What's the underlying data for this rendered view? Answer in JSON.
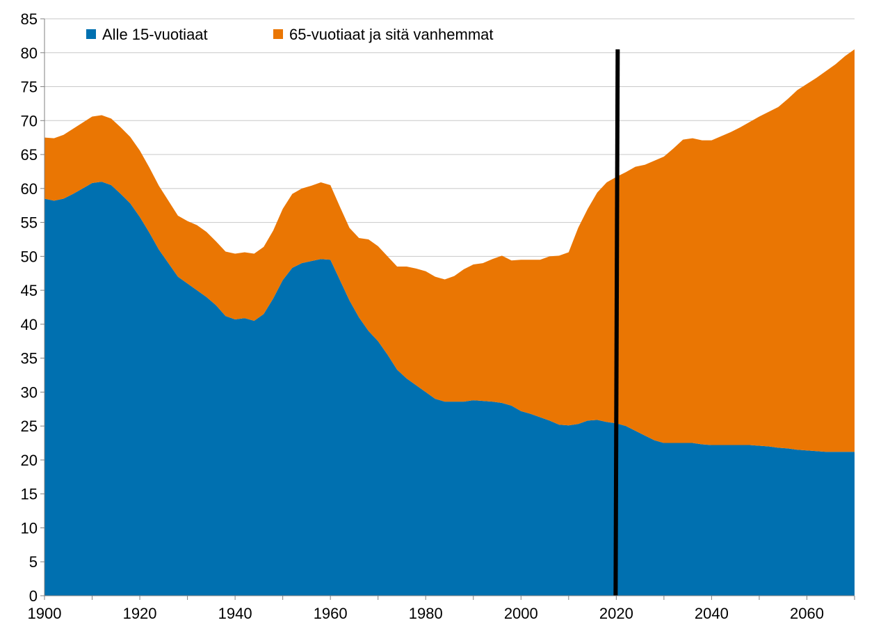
{
  "chart_data": {
    "type": "area",
    "stacked": true,
    "title": "",
    "xlabel": "",
    "ylabel": "",
    "xlim": [
      1900,
      2070
    ],
    "ylim": [
      0,
      85
    ],
    "x_ticks": [
      1900,
      1920,
      1940,
      1960,
      1980,
      2000,
      2020,
      2040,
      2060
    ],
    "y_ticks": [
      0,
      5,
      10,
      15,
      20,
      25,
      30,
      35,
      40,
      45,
      50,
      55,
      60,
      65,
      70,
      75,
      80,
      85
    ],
    "grid": {
      "horizontal": true,
      "vertical": false
    },
    "legend_position": "top-left",
    "marker_line": {
      "x": 2020,
      "color": "#000000"
    },
    "x": [
      1900,
      1902,
      1904,
      1906,
      1908,
      1910,
      1912,
      1914,
      1916,
      1918,
      1920,
      1922,
      1924,
      1926,
      1928,
      1930,
      1932,
      1934,
      1936,
      1938,
      1940,
      1942,
      1944,
      1946,
      1948,
      1950,
      1952,
      1954,
      1956,
      1958,
      1960,
      1962,
      1964,
      1966,
      1968,
      1970,
      1972,
      1974,
      1976,
      1978,
      1980,
      1982,
      1984,
      1986,
      1988,
      1990,
      1992,
      1994,
      1996,
      1998,
      2000,
      2002,
      2004,
      2006,
      2008,
      2010,
      2012,
      2014,
      2016,
      2018,
      2020,
      2022,
      2024,
      2026,
      2028,
      2030,
      2032,
      2034,
      2036,
      2038,
      2040,
      2042,
      2044,
      2046,
      2048,
      2050,
      2052,
      2054,
      2056,
      2058,
      2060,
      2062,
      2064,
      2066,
      2068,
      2070
    ],
    "series": [
      {
        "name": "Alle 15-vuotiaat",
        "color": "#0070B0",
        "values": [
          58.5,
          58.2,
          58.5,
          59.2,
          60.0,
          60.8,
          61.0,
          60.5,
          59.2,
          57.8,
          55.8,
          53.5,
          51.0,
          49.0,
          47.0,
          46.0,
          45.0,
          44.0,
          42.8,
          41.2,
          40.7,
          40.9,
          40.5,
          41.5,
          43.8,
          46.5,
          48.3,
          49.0,
          49.3,
          49.6,
          49.5,
          46.5,
          43.5,
          41.0,
          39.0,
          37.5,
          35.5,
          33.3,
          32.0,
          31.0,
          30.0,
          29.0,
          28.6,
          28.6,
          28.6,
          28.8,
          28.7,
          28.6,
          28.4,
          28.0,
          27.2,
          26.8,
          26.3,
          25.8,
          25.2,
          25.1,
          25.3,
          25.8,
          25.9,
          25.6,
          25.4,
          25.0,
          24.3,
          23.6,
          22.9,
          22.5,
          22.5,
          22.5,
          22.5,
          22.3,
          22.2,
          22.2,
          22.2,
          22.2,
          22.2,
          22.1,
          22.0,
          21.8,
          21.7,
          21.5,
          21.4,
          21.3,
          21.2,
          21.2,
          21.2,
          21.2
        ]
      },
      {
        "name": "65-vuotiaat ja sitä vanhemmat",
        "color": "#EA7603",
        "values": [
          9.0,
          9.2,
          9.4,
          9.6,
          9.7,
          9.8,
          9.8,
          9.8,
          9.8,
          9.8,
          9.8,
          9.6,
          9.4,
          9.2,
          9.0,
          9.2,
          9.6,
          9.6,
          9.4,
          9.5,
          9.7,
          9.7,
          9.9,
          9.9,
          10.0,
          10.5,
          10.9,
          11.0,
          11.1,
          11.3,
          11.0,
          10.8,
          10.7,
          11.7,
          13.5,
          14.0,
          14.5,
          15.2,
          16.5,
          17.2,
          17.8,
          18.0,
          18.0,
          18.5,
          19.5,
          20.0,
          20.3,
          21.0,
          21.7,
          21.4,
          22.3,
          22.7,
          23.2,
          24.2,
          24.9,
          25.5,
          28.9,
          31.2,
          33.5,
          35.3,
          36.3,
          37.4,
          38.9,
          39.9,
          41.2,
          42.2,
          43.4,
          44.7,
          44.9,
          44.8,
          44.9,
          45.5,
          46.1,
          46.8,
          47.6,
          48.5,
          49.3,
          50.2,
          51.5,
          53.0,
          54.0,
          55.0,
          56.1,
          57.1,
          58.3,
          59.3
        ]
      }
    ]
  }
}
